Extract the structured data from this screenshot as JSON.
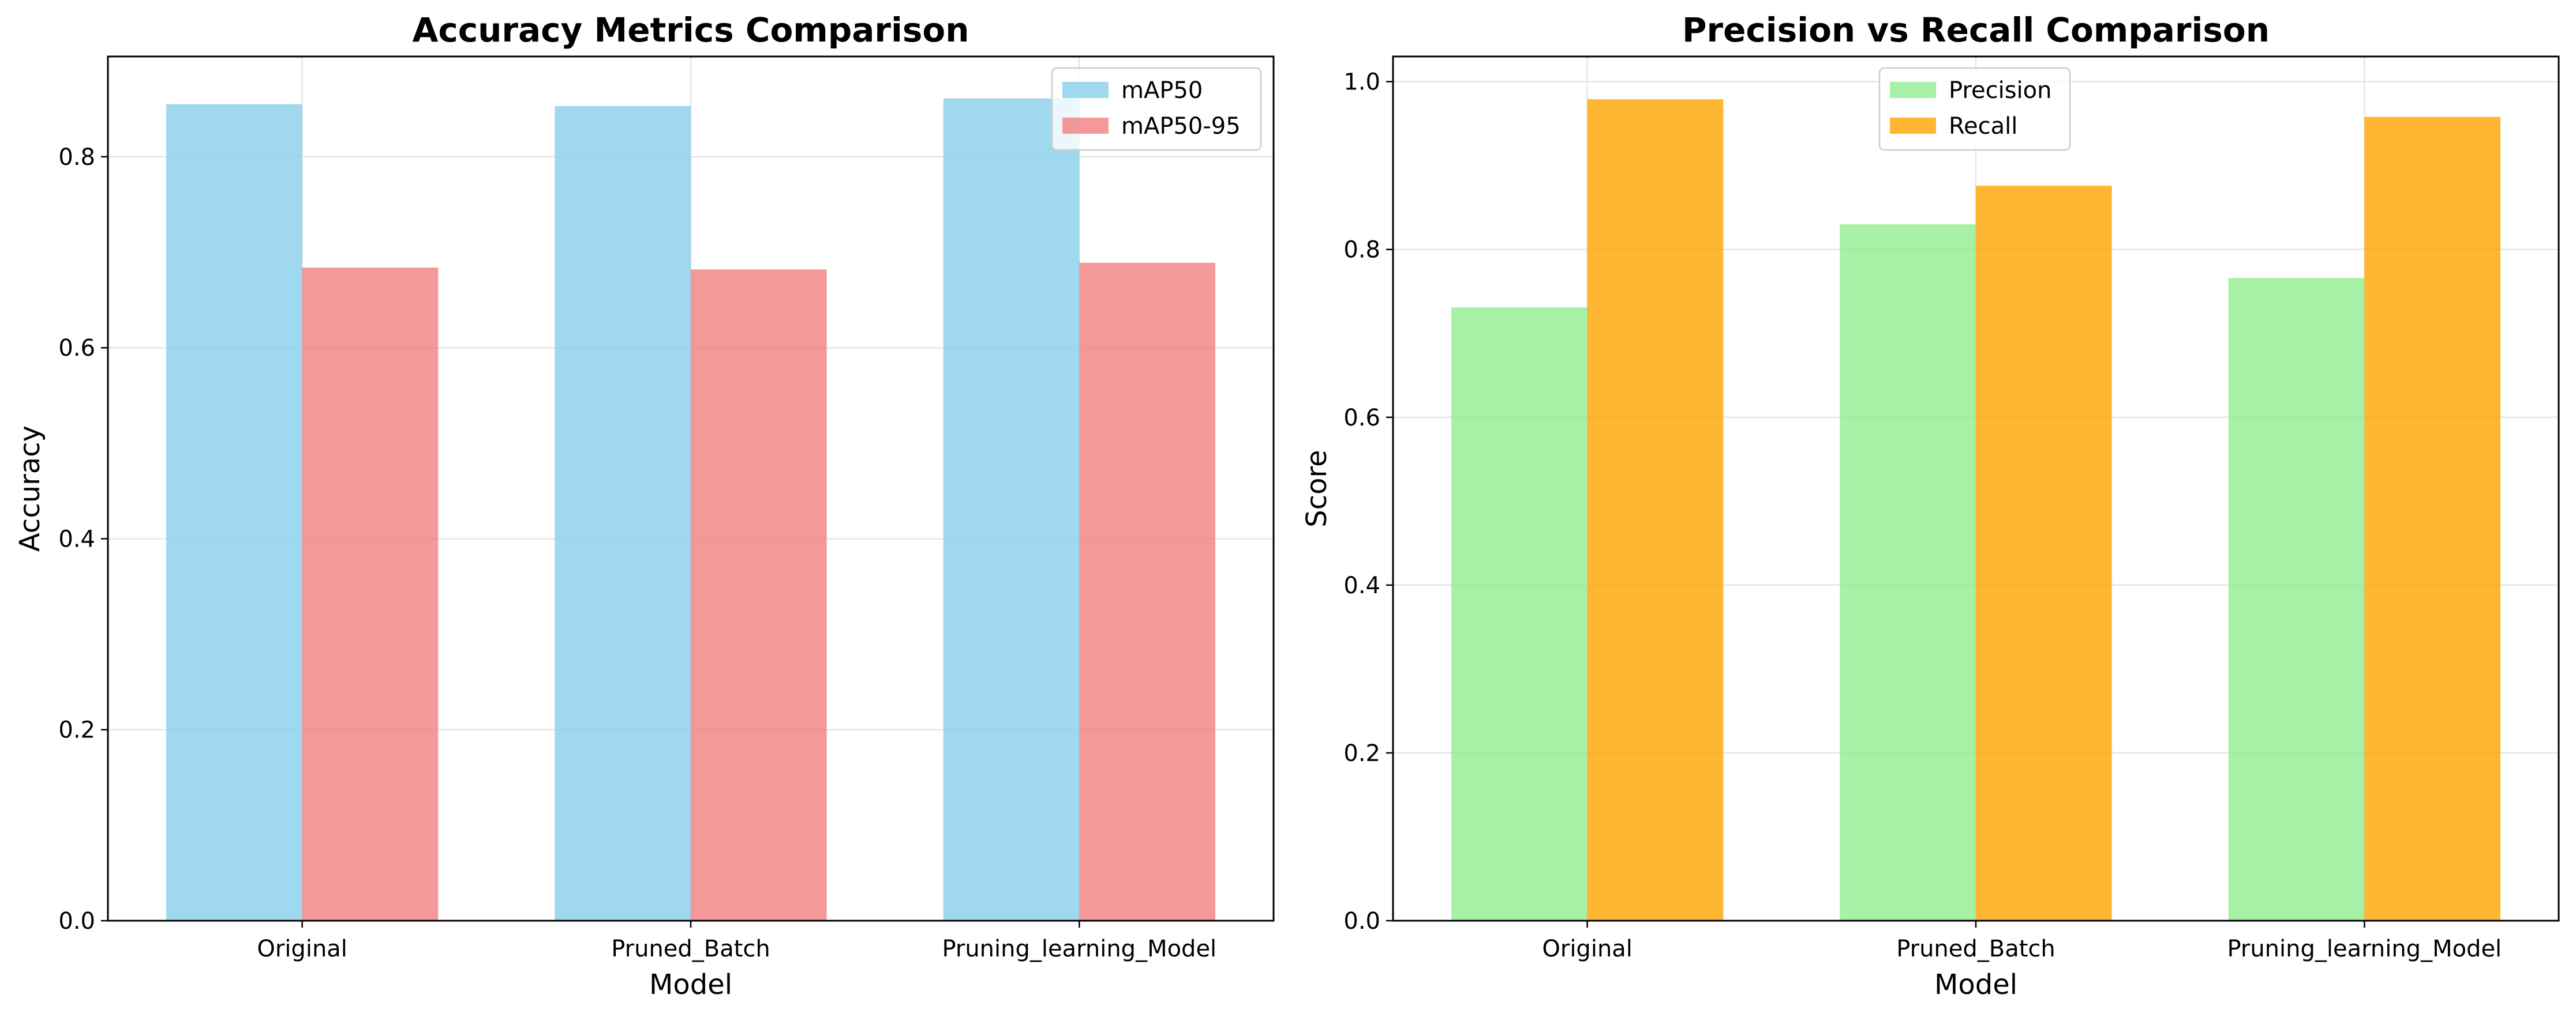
{
  "chart_data": [
    {
      "type": "bar",
      "title": "Accuracy Metrics Comparison",
      "xlabel": "Model",
      "ylabel": "Accuracy",
      "categories": [
        "Original",
        "Pruned_Batch",
        "Pruning_learning_Model"
      ],
      "series": [
        {
          "name": "mAP50",
          "values": [
            0.855,
            0.853,
            0.861
          ],
          "color": "#87ceeb"
        },
        {
          "name": "mAP50-95",
          "values": [
            0.684,
            0.682,
            0.689
          ],
          "color": "#f08080"
        }
      ],
      "ylim": [
        0,
        0.905
      ],
      "yticks": [
        0.0,
        0.2,
        0.4,
        0.6,
        0.8
      ],
      "ytick_labels": [
        "0.0",
        "0.2",
        "0.4",
        "0.6",
        "0.8"
      ],
      "grid": true,
      "legend_position": "top-right"
    },
    {
      "type": "bar",
      "title": "Precision vs Recall Comparison",
      "xlabel": "Model",
      "ylabel": "Score",
      "categories": [
        "Original",
        "Pruned_Batch",
        "Pruning_learning_Model"
      ],
      "series": [
        {
          "name": "Precision",
          "values": [
            0.731,
            0.83,
            0.766
          ],
          "color": "#90ee90"
        },
        {
          "name": "Recall",
          "values": [
            0.979,
            0.876,
            0.958
          ],
          "color": "#ffa500"
        }
      ],
      "ylim": [
        0,
        1.03
      ],
      "yticks": [
        0.0,
        0.2,
        0.4,
        0.6,
        0.8,
        1.0
      ],
      "ytick_labels": [
        "0.0",
        "0.2",
        "0.4",
        "0.6",
        "0.8",
        "1.0"
      ],
      "grid": true,
      "legend_position": "upper-center"
    }
  ]
}
